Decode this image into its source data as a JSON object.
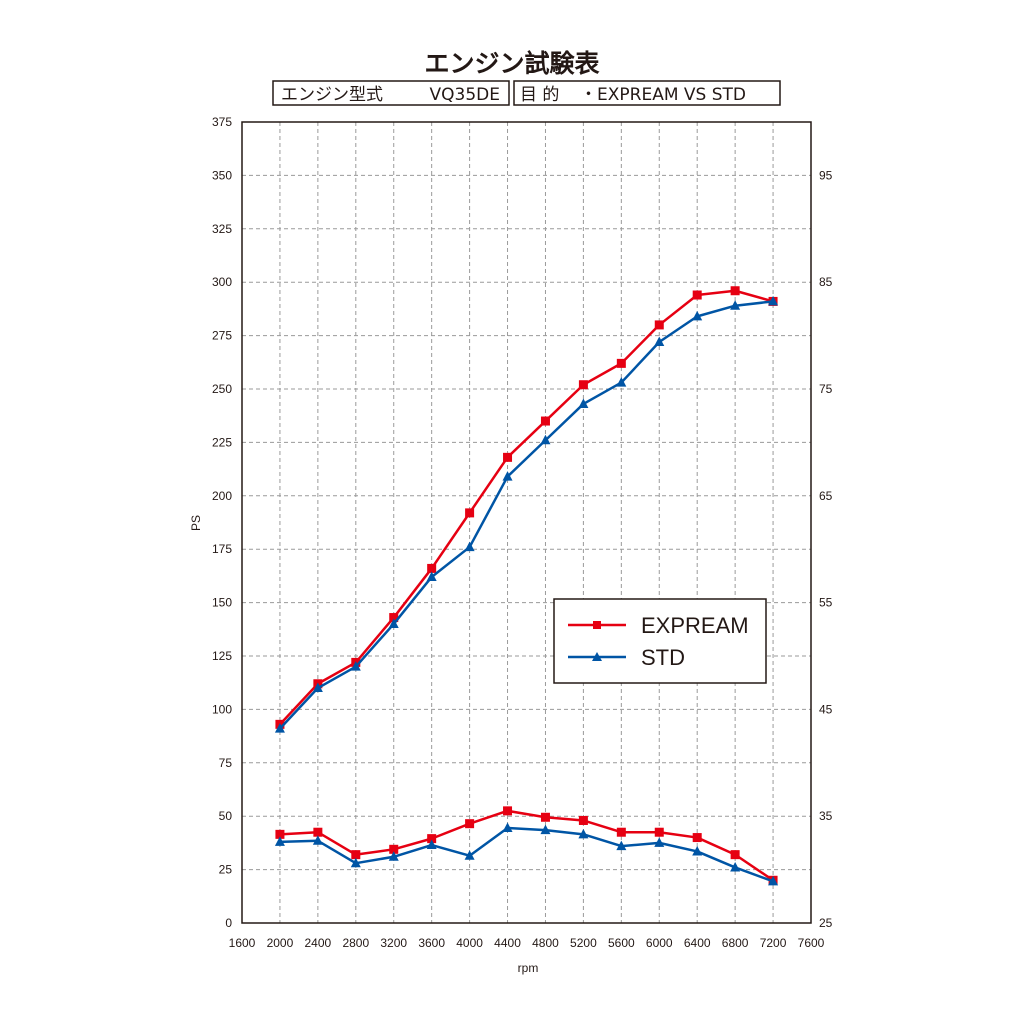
{
  "chart_data": {
    "type": "line",
    "title": "エンジン試験表",
    "info": {
      "engine_label": "エンジン型式",
      "engine_value": "VQ35DE",
      "purpose_label": "目 的",
      "purpose_value": "・EXPREAM VS STD"
    },
    "xlabel": "rpm",
    "ylabel": "PS",
    "xlim": [
      1600,
      7600
    ],
    "ylim": [
      0,
      375
    ],
    "y2lim": [
      25,
      100
    ],
    "x_ticks": [
      "1600",
      "2000",
      "2400",
      "2800",
      "3200",
      "3600",
      "4000",
      "4400",
      "4800",
      "5200",
      "5600",
      "6000",
      "6400",
      "6800",
      "7200",
      "7600"
    ],
    "y_ticks": [
      "0",
      "25",
      "50",
      "75",
      "100",
      "125",
      "150",
      "175",
      "200",
      "225",
      "250",
      "275",
      "300",
      "325",
      "350",
      "375"
    ],
    "y2_ticks": [
      "25",
      "35",
      "45",
      "55",
      "65",
      "75",
      "85",
      "95"
    ],
    "grid": true,
    "legend_position": "center-right",
    "x": [
      2000,
      2400,
      2800,
      3200,
      3600,
      4000,
      4400,
      4800,
      5200,
      5600,
      6000,
      6400,
      6800,
      7200
    ],
    "series": [
      {
        "name": "EXPREAM",
        "color": "#e60012",
        "marker": "square",
        "power": [
          93,
          112,
          122,
          143,
          166,
          192,
          218,
          235,
          252,
          262,
          280,
          294,
          296,
          291
        ],
        "torque": [
          33.3,
          33.5,
          31.4,
          31.9,
          32.9,
          34.3,
          35.5,
          34.9,
          34.6,
          33.5,
          33.5,
          33.0,
          31.4,
          29.0
        ]
      },
      {
        "name": "STD",
        "color": "#0055a5",
        "marker": "triangle",
        "power": [
          91,
          110,
          120,
          140,
          162,
          176,
          209,
          226,
          243,
          253,
          272,
          284,
          289,
          291
        ],
        "torque": [
          32.6,
          32.7,
          30.6,
          31.2,
          32.3,
          31.3,
          33.9,
          33.7,
          33.3,
          32.2,
          32.5,
          31.7,
          30.2,
          28.9
        ]
      }
    ]
  }
}
